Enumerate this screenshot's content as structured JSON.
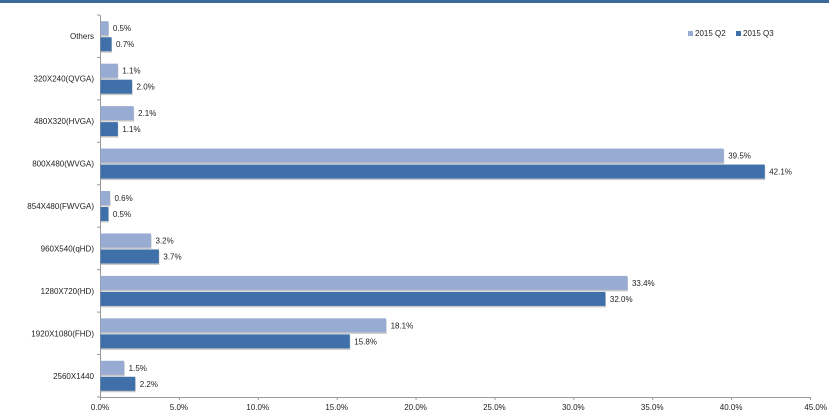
{
  "chart_data": {
    "type": "bar",
    "orientation": "horizontal",
    "categories": [
      "Others",
      "320X240(QVGA)",
      "480X320(HVGA)",
      "800X480(WVGA)",
      "854X480(FWVGA)",
      "960X540(qHD)",
      "1280X720(HD)",
      "1920X1080(FHD)",
      "2560X1440"
    ],
    "series": [
      {
        "name": "2015 Q2",
        "color": "#97abd3",
        "values": [
          0.5,
          1.1,
          2.1,
          39.5,
          0.6,
          3.2,
          33.4,
          18.1,
          1.5
        ],
        "labels": [
          "0.5%",
          "1.1%",
          "2.1%",
          "39.5%",
          "0.6%",
          "3.2%",
          "33.4%",
          "18.1%",
          "1.5%"
        ]
      },
      {
        "name": "2015 Q3",
        "color": "#4070aa",
        "values": [
          0.7,
          2.0,
          1.1,
          42.1,
          0.5,
          3.7,
          32.0,
          15.8,
          2.2
        ],
        "labels": [
          "0.7%",
          "2.0%",
          "1.1%",
          "42.1%",
          "0.5%",
          "3.7%",
          "32.0%",
          "15.8%",
          "2.2%"
        ]
      }
    ],
    "xlim": [
      0,
      45
    ],
    "xticks": [
      "0.0%",
      "5.0%",
      "10.0%",
      "15.0%",
      "20.0%",
      "25.0%",
      "30.0%",
      "35.0%",
      "40.0%",
      "45.0%"
    ],
    "legend_position": "top-right",
    "grid": false
  }
}
